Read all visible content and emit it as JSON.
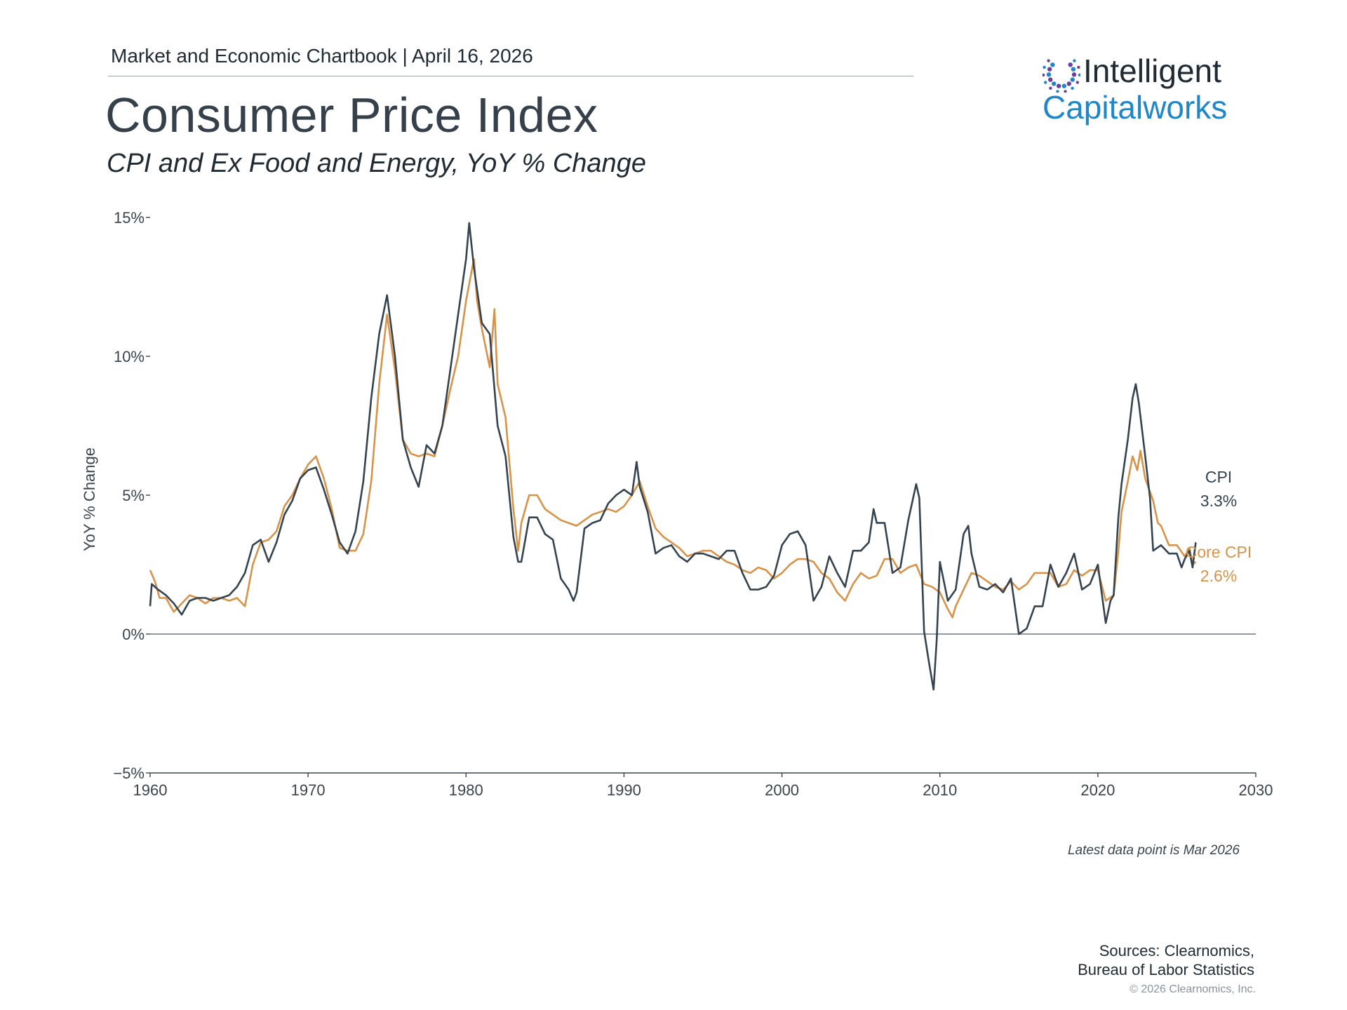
{
  "header": {
    "chartbook": "Market and Economic Chartbook | April 16, 2026",
    "title": "Consumer Price Index",
    "subtitle": "CPI and Ex Food and Energy, YoY % Change"
  },
  "logo": {
    "word1": "Intelligent",
    "word2": "Capitalworks",
    "colors": {
      "primary": "#1f87c8",
      "accent": "#6b3fa0",
      "dark": "#1f2a33"
    }
  },
  "footer": {
    "note": "Latest data point is Mar 2026",
    "sources_line1": "Sources: Clearnomics,",
    "sources_line2": "Bureau of Labor Statistics",
    "copyright": "© 2026 Clearnomics, Inc."
  },
  "chart_data": {
    "type": "line",
    "ylabel": "YoY % Change",
    "xlim": [
      1960,
      2030
    ],
    "ylim": [
      -5,
      15
    ],
    "x_ticks": [
      1960,
      1970,
      1980,
      1990,
      2000,
      2010,
      2020,
      2030
    ],
    "x_tick_labels": [
      "1960",
      "1970",
      "1980",
      "1990",
      "2000",
      "2010",
      "2020",
      "2030"
    ],
    "y_ticks": [
      -5,
      0,
      5,
      10,
      15
    ],
    "y_tick_labels": [
      "−5%",
      "0%",
      "5%",
      "10%",
      "15%"
    ],
    "grid": false,
    "legend": "end-of-line labels",
    "series": [
      {
        "name": "CPI",
        "end_label": "3.3%",
        "color": "#35434f",
        "points": [
          [
            1960.0,
            1.0
          ],
          [
            1960.1,
            1.8
          ],
          [
            1960.5,
            1.6
          ],
          [
            1961.0,
            1.4
          ],
          [
            1961.5,
            1.1
          ],
          [
            1962.0,
            0.7
          ],
          [
            1962.5,
            1.2
          ],
          [
            1963.0,
            1.3
          ],
          [
            1963.5,
            1.3
          ],
          [
            1964.0,
            1.2
          ],
          [
            1964.5,
            1.3
          ],
          [
            1965.0,
            1.4
          ],
          [
            1965.5,
            1.7
          ],
          [
            1966.0,
            2.2
          ],
          [
            1966.5,
            3.2
          ],
          [
            1967.0,
            3.4
          ],
          [
            1967.5,
            2.6
          ],
          [
            1968.0,
            3.3
          ],
          [
            1968.5,
            4.3
          ],
          [
            1969.0,
            4.8
          ],
          [
            1969.5,
            5.6
          ],
          [
            1970.0,
            5.9
          ],
          [
            1970.5,
            6.0
          ],
          [
            1971.0,
            5.2
          ],
          [
            1971.5,
            4.3
          ],
          [
            1972.0,
            3.3
          ],
          [
            1972.5,
            2.9
          ],
          [
            1973.0,
            3.7
          ],
          [
            1973.5,
            5.5
          ],
          [
            1974.0,
            8.5
          ],
          [
            1974.5,
            10.8
          ],
          [
            1975.0,
            12.2
          ],
          [
            1975.5,
            10.0
          ],
          [
            1976.0,
            7.0
          ],
          [
            1976.5,
            6.0
          ],
          [
            1977.0,
            5.3
          ],
          [
            1977.5,
            6.8
          ],
          [
            1978.0,
            6.5
          ],
          [
            1978.5,
            7.5
          ],
          [
            1979.0,
            9.5
          ],
          [
            1979.5,
            11.5
          ],
          [
            1980.0,
            13.5
          ],
          [
            1980.2,
            14.8
          ],
          [
            1980.5,
            13.2
          ],
          [
            1981.0,
            11.2
          ],
          [
            1981.5,
            10.8
          ],
          [
            1982.0,
            7.5
          ],
          [
            1982.5,
            6.4
          ],
          [
            1983.0,
            3.5
          ],
          [
            1983.3,
            2.6
          ],
          [
            1983.5,
            2.6
          ],
          [
            1984.0,
            4.2
          ],
          [
            1984.5,
            4.2
          ],
          [
            1985.0,
            3.6
          ],
          [
            1985.5,
            3.4
          ],
          [
            1986.0,
            2.0
          ],
          [
            1986.5,
            1.6
          ],
          [
            1986.8,
            1.2
          ],
          [
            1987.0,
            1.5
          ],
          [
            1987.5,
            3.8
          ],
          [
            1988.0,
            4.0
          ],
          [
            1988.5,
            4.1
          ],
          [
            1989.0,
            4.7
          ],
          [
            1989.5,
            5.0
          ],
          [
            1990.0,
            5.2
          ],
          [
            1990.5,
            5.0
          ],
          [
            1990.8,
            6.2
          ],
          [
            1991.0,
            5.3
          ],
          [
            1991.5,
            4.4
          ],
          [
            1992.0,
            2.9
          ],
          [
            1992.5,
            3.1
          ],
          [
            1993.0,
            3.2
          ],
          [
            1993.5,
            2.8
          ],
          [
            1994.0,
            2.6
          ],
          [
            1994.5,
            2.9
          ],
          [
            1995.0,
            2.9
          ],
          [
            1995.5,
            2.8
          ],
          [
            1996.0,
            2.7
          ],
          [
            1996.5,
            3.0
          ],
          [
            1997.0,
            3.0
          ],
          [
            1997.5,
            2.2
          ],
          [
            1998.0,
            1.6
          ],
          [
            1998.5,
            1.6
          ],
          [
            1999.0,
            1.7
          ],
          [
            1999.5,
            2.1
          ],
          [
            2000.0,
            3.2
          ],
          [
            2000.5,
            3.6
          ],
          [
            2001.0,
            3.7
          ],
          [
            2001.5,
            3.2
          ],
          [
            2002.0,
            1.2
          ],
          [
            2002.5,
            1.7
          ],
          [
            2003.0,
            2.8
          ],
          [
            2003.5,
            2.2
          ],
          [
            2004.0,
            1.7
          ],
          [
            2004.5,
            3.0
          ],
          [
            2005.0,
            3.0
          ],
          [
            2005.5,
            3.3
          ],
          [
            2005.8,
            4.5
          ],
          [
            2006.0,
            4.0
          ],
          [
            2006.5,
            4.0
          ],
          [
            2007.0,
            2.2
          ],
          [
            2007.5,
            2.4
          ],
          [
            2008.0,
            4.1
          ],
          [
            2008.5,
            5.4
          ],
          [
            2008.7,
            4.9
          ],
          [
            2009.0,
            0.1
          ],
          [
            2009.3,
            -1.0
          ],
          [
            2009.6,
            -2.0
          ],
          [
            2009.8,
            -0.2
          ],
          [
            2010.0,
            2.6
          ],
          [
            2010.5,
            1.2
          ],
          [
            2011.0,
            1.6
          ],
          [
            2011.5,
            3.6
          ],
          [
            2011.8,
            3.9
          ],
          [
            2012.0,
            2.9
          ],
          [
            2012.5,
            1.7
          ],
          [
            2013.0,
            1.6
          ],
          [
            2013.5,
            1.8
          ],
          [
            2014.0,
            1.5
          ],
          [
            2014.5,
            2.0
          ],
          [
            2015.0,
            0.0
          ],
          [
            2015.5,
            0.2
          ],
          [
            2016.0,
            1.0
          ],
          [
            2016.5,
            1.0
          ],
          [
            2017.0,
            2.5
          ],
          [
            2017.5,
            1.7
          ],
          [
            2018.0,
            2.2
          ],
          [
            2018.5,
            2.9
          ],
          [
            2019.0,
            1.6
          ],
          [
            2019.5,
            1.8
          ],
          [
            2020.0,
            2.5
          ],
          [
            2020.5,
            0.4
          ],
          [
            2020.8,
            1.2
          ],
          [
            2021.0,
            1.4
          ],
          [
            2021.3,
            4.2
          ],
          [
            2021.5,
            5.4
          ],
          [
            2021.9,
            7.0
          ],
          [
            2022.2,
            8.5
          ],
          [
            2022.4,
            9.0
          ],
          [
            2022.6,
            8.3
          ],
          [
            2023.0,
            6.4
          ],
          [
            2023.3,
            4.9
          ],
          [
            2023.5,
            3.0
          ],
          [
            2024.0,
            3.2
          ],
          [
            2024.5,
            2.9
          ],
          [
            2025.0,
            2.9
          ],
          [
            2025.3,
            2.4
          ],
          [
            2025.5,
            2.7
          ],
          [
            2025.8,
            3.0
          ],
          [
            2026.0,
            2.4
          ],
          [
            2026.2,
            3.3
          ]
        ]
      },
      {
        "name": "Core CPI",
        "end_label": "2.6%",
        "color": "#d8934a",
        "points": [
          [
            1960.0,
            2.3
          ],
          [
            1960.3,
            1.9
          ],
          [
            1960.6,
            1.3
          ],
          [
            1961.0,
            1.3
          ],
          [
            1961.5,
            0.8
          ],
          [
            1962.0,
            1.1
          ],
          [
            1962.5,
            1.4
          ],
          [
            1963.0,
            1.3
          ],
          [
            1963.5,
            1.1
          ],
          [
            1964.0,
            1.3
          ],
          [
            1964.5,
            1.3
          ],
          [
            1965.0,
            1.2
          ],
          [
            1965.5,
            1.3
          ],
          [
            1966.0,
            1.0
          ],
          [
            1966.5,
            2.5
          ],
          [
            1967.0,
            3.3
          ],
          [
            1967.5,
            3.4
          ],
          [
            1968.0,
            3.7
          ],
          [
            1968.5,
            4.6
          ],
          [
            1969.0,
            5.0
          ],
          [
            1969.5,
            5.6
          ],
          [
            1970.0,
            6.1
          ],
          [
            1970.5,
            6.4
          ],
          [
            1971.0,
            5.6
          ],
          [
            1971.5,
            4.5
          ],
          [
            1972.0,
            3.1
          ],
          [
            1972.5,
            3.0
          ],
          [
            1973.0,
            3.0
          ],
          [
            1973.5,
            3.6
          ],
          [
            1974.0,
            5.5
          ],
          [
            1974.5,
            9.0
          ],
          [
            1975.0,
            11.5
          ],
          [
            1975.5,
            9.5
          ],
          [
            1976.0,
            7.0
          ],
          [
            1976.5,
            6.5
          ],
          [
            1977.0,
            6.4
          ],
          [
            1977.5,
            6.5
          ],
          [
            1978.0,
            6.4
          ],
          [
            1978.5,
            7.5
          ],
          [
            1979.0,
            8.8
          ],
          [
            1979.5,
            10.0
          ],
          [
            1980.0,
            12.0
          ],
          [
            1980.5,
            13.5
          ],
          [
            1980.7,
            12.0
          ],
          [
            1981.0,
            11.0
          ],
          [
            1981.5,
            9.6
          ],
          [
            1981.8,
            11.7
          ],
          [
            1982.0,
            9.0
          ],
          [
            1982.5,
            7.8
          ],
          [
            1983.0,
            4.5
          ],
          [
            1983.3,
            3.0
          ],
          [
            1983.5,
            4.0
          ],
          [
            1984.0,
            5.0
          ],
          [
            1984.5,
            5.0
          ],
          [
            1985.0,
            4.5
          ],
          [
            1985.5,
            4.3
          ],
          [
            1986.0,
            4.1
          ],
          [
            1986.5,
            4.0
          ],
          [
            1987.0,
            3.9
          ],
          [
            1987.5,
            4.1
          ],
          [
            1988.0,
            4.3
          ],
          [
            1988.5,
            4.4
          ],
          [
            1989.0,
            4.5
          ],
          [
            1989.5,
            4.4
          ],
          [
            1990.0,
            4.6
          ],
          [
            1990.5,
            5.0
          ],
          [
            1991.0,
            5.5
          ],
          [
            1991.5,
            4.6
          ],
          [
            1992.0,
            3.8
          ],
          [
            1992.5,
            3.5
          ],
          [
            1993.0,
            3.3
          ],
          [
            1993.5,
            3.1
          ],
          [
            1994.0,
            2.8
          ],
          [
            1994.5,
            2.9
          ],
          [
            1995.0,
            3.0
          ],
          [
            1995.5,
            3.0
          ],
          [
            1996.0,
            2.8
          ],
          [
            1996.5,
            2.6
          ],
          [
            1997.0,
            2.5
          ],
          [
            1997.5,
            2.3
          ],
          [
            1998.0,
            2.2
          ],
          [
            1998.5,
            2.4
          ],
          [
            1999.0,
            2.3
          ],
          [
            1999.5,
            2.0
          ],
          [
            2000.0,
            2.2
          ],
          [
            2000.5,
            2.5
          ],
          [
            2001.0,
            2.7
          ],
          [
            2001.5,
            2.7
          ],
          [
            2002.0,
            2.6
          ],
          [
            2002.5,
            2.2
          ],
          [
            2003.0,
            2.0
          ],
          [
            2003.5,
            1.5
          ],
          [
            2004.0,
            1.2
          ],
          [
            2004.5,
            1.8
          ],
          [
            2005.0,
            2.2
          ],
          [
            2005.5,
            2.0
          ],
          [
            2006.0,
            2.1
          ],
          [
            2006.5,
            2.7
          ],
          [
            2007.0,
            2.7
          ],
          [
            2007.5,
            2.2
          ],
          [
            2008.0,
            2.4
          ],
          [
            2008.5,
            2.5
          ],
          [
            2009.0,
            1.8
          ],
          [
            2009.5,
            1.7
          ],
          [
            2010.0,
            1.5
          ],
          [
            2010.5,
            0.9
          ],
          [
            2010.8,
            0.6
          ],
          [
            2011.0,
            1.0
          ],
          [
            2011.5,
            1.6
          ],
          [
            2012.0,
            2.2
          ],
          [
            2012.5,
            2.1
          ],
          [
            2013.0,
            1.9
          ],
          [
            2013.5,
            1.7
          ],
          [
            2014.0,
            1.6
          ],
          [
            2014.5,
            1.9
          ],
          [
            2015.0,
            1.6
          ],
          [
            2015.5,
            1.8
          ],
          [
            2016.0,
            2.2
          ],
          [
            2016.5,
            2.2
          ],
          [
            2017.0,
            2.2
          ],
          [
            2017.5,
            1.7
          ],
          [
            2018.0,
            1.8
          ],
          [
            2018.5,
            2.3
          ],
          [
            2019.0,
            2.1
          ],
          [
            2019.5,
            2.3
          ],
          [
            2020.0,
            2.3
          ],
          [
            2020.5,
            1.2
          ],
          [
            2021.0,
            1.4
          ],
          [
            2021.3,
            3.0
          ],
          [
            2021.5,
            4.4
          ],
          [
            2021.9,
            5.5
          ],
          [
            2022.2,
            6.4
          ],
          [
            2022.5,
            5.9
          ],
          [
            2022.7,
            6.6
          ],
          [
            2023.0,
            5.6
          ],
          [
            2023.5,
            4.8
          ],
          [
            2023.8,
            4.0
          ],
          [
            2024.0,
            3.9
          ],
          [
            2024.5,
            3.2
          ],
          [
            2025.0,
            3.2
          ],
          [
            2025.5,
            2.8
          ],
          [
            2025.8,
            3.1
          ],
          [
            2026.0,
            2.5
          ],
          [
            2026.2,
            2.6
          ]
        ]
      }
    ]
  }
}
